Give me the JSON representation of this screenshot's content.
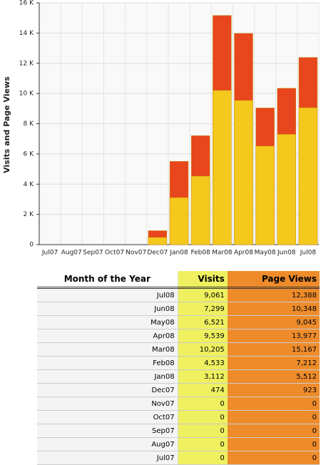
{
  "chart_data": {
    "type": "bar",
    "ylabel": "Visits and Page Views",
    "categories": [
      "Jul07",
      "Aug07",
      "Sep07",
      "Oct07",
      "Nov07",
      "Dec07",
      "Jan08",
      "Feb08",
      "Mar08",
      "Apr08",
      "May08",
      "Jun08",
      "Jul08"
    ],
    "series": [
      {
        "name": "Page Views",
        "color": "#e8461c",
        "values": [
          0,
          0,
          0,
          0,
          0,
          923,
          5512,
          7212,
          15167,
          13977,
          9045,
          10348,
          12388
        ]
      },
      {
        "name": "Visits",
        "color": "#f4c81c",
        "values": [
          0,
          0,
          0,
          0,
          0,
          474,
          3112,
          4533,
          10205,
          9539,
          6521,
          7299,
          9061
        ]
      }
    ],
    "ylim": [
      0,
      16000
    ],
    "yticks": [
      0,
      {
        "value": 2000,
        "label": "2 K"
      },
      {
        "value": 4000,
        "label": "4 K"
      },
      {
        "value": 6000,
        "label": "6 K"
      },
      {
        "value": 8000,
        "label": "8 K"
      },
      {
        "value": 10000,
        "label": "10 K"
      },
      {
        "value": 12000,
        "label": "12 K"
      },
      {
        "value": 14000,
        "label": "14 K"
      },
      {
        "value": 16000,
        "label": "16 K"
      }
    ],
    "grid": true
  },
  "table": {
    "headers": [
      "Month of the Year",
      "Visits",
      "Page Views"
    ],
    "rows": [
      [
        "Jul08",
        "9,061",
        "12,388"
      ],
      [
        "Jun08",
        "7,299",
        "10,348"
      ],
      [
        "May08",
        "6,521",
        "9,045"
      ],
      [
        "Apr08",
        "9,539",
        "13,977"
      ],
      [
        "Mar08",
        "10,205",
        "15,167"
      ],
      [
        "Feb08",
        "4,533",
        "7,212"
      ],
      [
        "Jan08",
        "3,112",
        "5,512"
      ],
      [
        "Dec07",
        "474",
        "923"
      ],
      [
        "Nov07",
        "0",
        "0"
      ],
      [
        "Oct07",
        "0",
        "0"
      ],
      [
        "Sep07",
        "0",
        "0"
      ],
      [
        "Aug07",
        "0",
        "0"
      ],
      [
        "Jul07",
        "0",
        "0"
      ]
    ]
  }
}
